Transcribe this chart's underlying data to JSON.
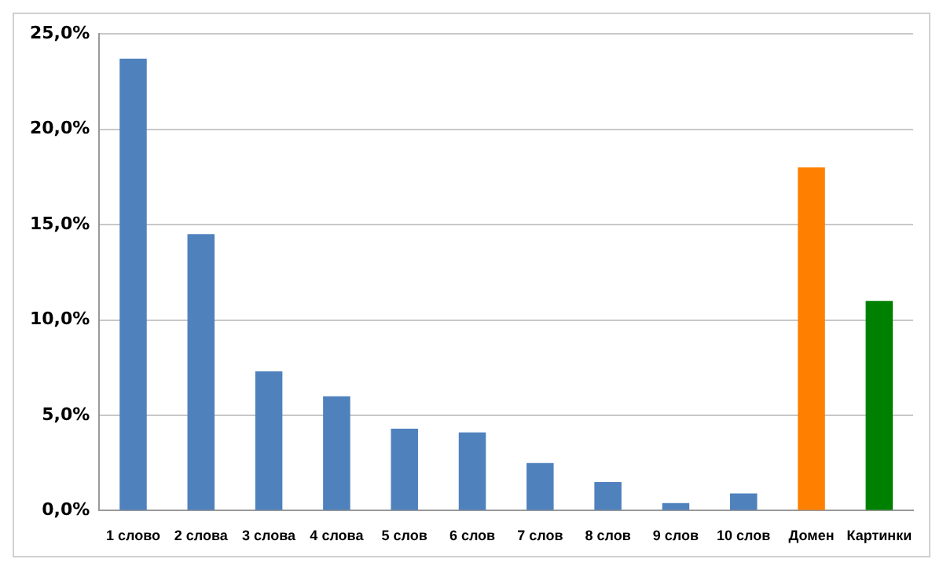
{
  "chart_data": {
    "type": "bar",
    "categories": [
      "1 слово",
      "2 слова",
      "3 слова",
      "4 слова",
      "5 слов",
      "6 слов",
      "7 слов",
      "8 слов",
      "9 слов",
      "10 слов",
      "Домен",
      "Картинки"
    ],
    "values": [
      23.7,
      14.5,
      7.3,
      6.0,
      4.3,
      4.1,
      2.5,
      1.5,
      0.4,
      0.9,
      18.0,
      11.0
    ],
    "colors": [
      "#4f81bd",
      "#4f81bd",
      "#4f81bd",
      "#4f81bd",
      "#4f81bd",
      "#4f81bd",
      "#4f81bd",
      "#4f81bd",
      "#4f81bd",
      "#4f81bd",
      "#ff8000",
      "#008000"
    ],
    "ylim": [
      0,
      25
    ],
    "yticks": [
      {
        "value": 0,
        "label": "0,0%"
      },
      {
        "value": 5,
        "label": "5,0%"
      },
      {
        "value": 10,
        "label": "10,0%"
      },
      {
        "value": 15,
        "label": "15,0%"
      },
      {
        "value": 20,
        "label": "20,0%"
      },
      {
        "value": 25,
        "label": "25,0%"
      }
    ],
    "grid": "y",
    "legend": false
  }
}
